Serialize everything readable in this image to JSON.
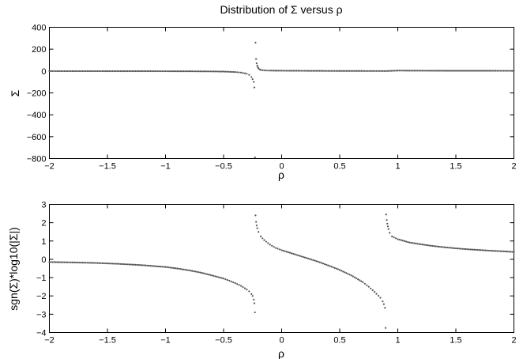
{
  "chart_data": [
    {
      "type": "scatter",
      "title": "Distribution of Σ versus ρ",
      "xlabel": "ρ",
      "ylabel": "Σ",
      "xlim": [
        -2,
        2
      ],
      "ylim": [
        -800,
        400
      ],
      "xticks": [
        -2,
        -1.5,
        -1,
        -0.5,
        0,
        0.5,
        1,
        1.5,
        2
      ],
      "xtick_labels": [
        "−2",
        "−1.5",
        "−1",
        "−0.5",
        "0",
        "0.5",
        "1",
        "1.5",
        "2"
      ],
      "yticks": [
        -800,
        -600,
        -400,
        -200,
        0,
        200,
        400
      ],
      "ytick_labels": [
        "−800",
        "−600",
        "−400",
        "−200",
        "0",
        "200",
        "400"
      ],
      "marker_color": "#555555",
      "grid": false,
      "series": [
        {
          "x": [
            -2.0,
            -1.8,
            -1.6,
            -1.4,
            -1.2,
            -1.0,
            -0.8,
            -0.6,
            -0.5,
            -0.4,
            -0.35,
            -0.3,
            -0.28,
            -0.26,
            -0.25,
            -0.24,
            -0.235,
            -0.23,
            -0.225,
            -0.22,
            -0.215,
            -0.21,
            -0.205,
            -0.2,
            -0.19,
            -0.18,
            -0.15,
            -0.1,
            0.0,
            0.2,
            0.4,
            0.6,
            0.8,
            0.9,
            1.0,
            1.2,
            1.5,
            1.8,
            2.0
          ],
          "y": [
            -0.7,
            -0.8,
            -0.9,
            -1.1,
            -1.3,
            -1.6,
            -2.2,
            -3.6,
            -5,
            -9,
            -14,
            -25,
            -35,
            -55,
            -75,
            -100,
            -150,
            -790,
            260,
            110,
            70,
            50,
            35,
            25,
            15,
            10,
            6,
            4,
            3,
            2,
            1,
            0.5,
            0.2,
            0.05,
            4,
            3,
            2.5,
            2.2,
            2.0
          ]
        }
      ]
    },
    {
      "type": "scatter",
      "title": "",
      "xlabel": "ρ",
      "ylabel": "sgn(Σ)*log10(|Σ|)",
      "xlim": [
        -2,
        2
      ],
      "ylim": [
        -4,
        3
      ],
      "xticks": [
        -2,
        -1.5,
        -1,
        -0.5,
        0,
        0.5,
        1,
        1.5,
        2
      ],
      "xtick_labels": [
        "−2",
        "−1.5",
        "−1",
        "−0.5",
        "0",
        "0.5",
        "1",
        "1.5",
        "2"
      ],
      "yticks": [
        -4,
        -3,
        -2,
        -1,
        0,
        1,
        2,
        3
      ],
      "ytick_labels": [
        "−4",
        "−3",
        "−2",
        "−1",
        "0",
        "1",
        "2",
        "3"
      ],
      "marker_color": "#555555",
      "grid": false,
      "series": [
        {
          "x": [
            -2.0,
            -1.8,
            -1.6,
            -1.4,
            -1.2,
            -1.0,
            -0.9,
            -0.8,
            -0.7,
            -0.6,
            -0.5,
            -0.45,
            -0.4,
            -0.35,
            -0.3,
            -0.28,
            -0.26,
            -0.25,
            -0.24,
            -0.235,
            -0.23,
            -0.225,
            -0.22,
            -0.215,
            -0.21,
            -0.2,
            -0.18,
            -0.15,
            -0.1,
            -0.05,
            0.0,
            0.1,
            0.2,
            0.3,
            0.4,
            0.5,
            0.6,
            0.7,
            0.75,
            0.8,
            0.85,
            0.87,
            0.88,
            0.89,
            0.895,
            0.9,
            0.905,
            0.91,
            0.915,
            0.92,
            0.93,
            0.95,
            1.0,
            1.1,
            1.2,
            1.3,
            1.4,
            1.5,
            1.6,
            1.7,
            1.8,
            1.9,
            2.0
          ],
          "y": [
            -0.15,
            -0.17,
            -0.2,
            -0.25,
            -0.32,
            -0.42,
            -0.5,
            -0.6,
            -0.72,
            -0.88,
            -1.05,
            -1.17,
            -1.3,
            -1.45,
            -1.65,
            -1.75,
            -1.9,
            -2.0,
            -2.2,
            -2.4,
            -2.9,
            2.4,
            2.05,
            1.85,
            1.7,
            1.5,
            1.25,
            1.05,
            0.8,
            0.62,
            0.5,
            0.3,
            0.1,
            -0.1,
            -0.33,
            -0.58,
            -0.88,
            -1.25,
            -1.5,
            -1.78,
            -2.1,
            -2.3,
            -2.45,
            -2.65,
            -3.75,
            2.45,
            2.15,
            1.95,
            1.8,
            1.65,
            1.45,
            1.25,
            1.1,
            0.92,
            0.82,
            0.73,
            0.66,
            0.6,
            0.55,
            0.51,
            0.47,
            0.44,
            0.4
          ]
        }
      ]
    }
  ]
}
